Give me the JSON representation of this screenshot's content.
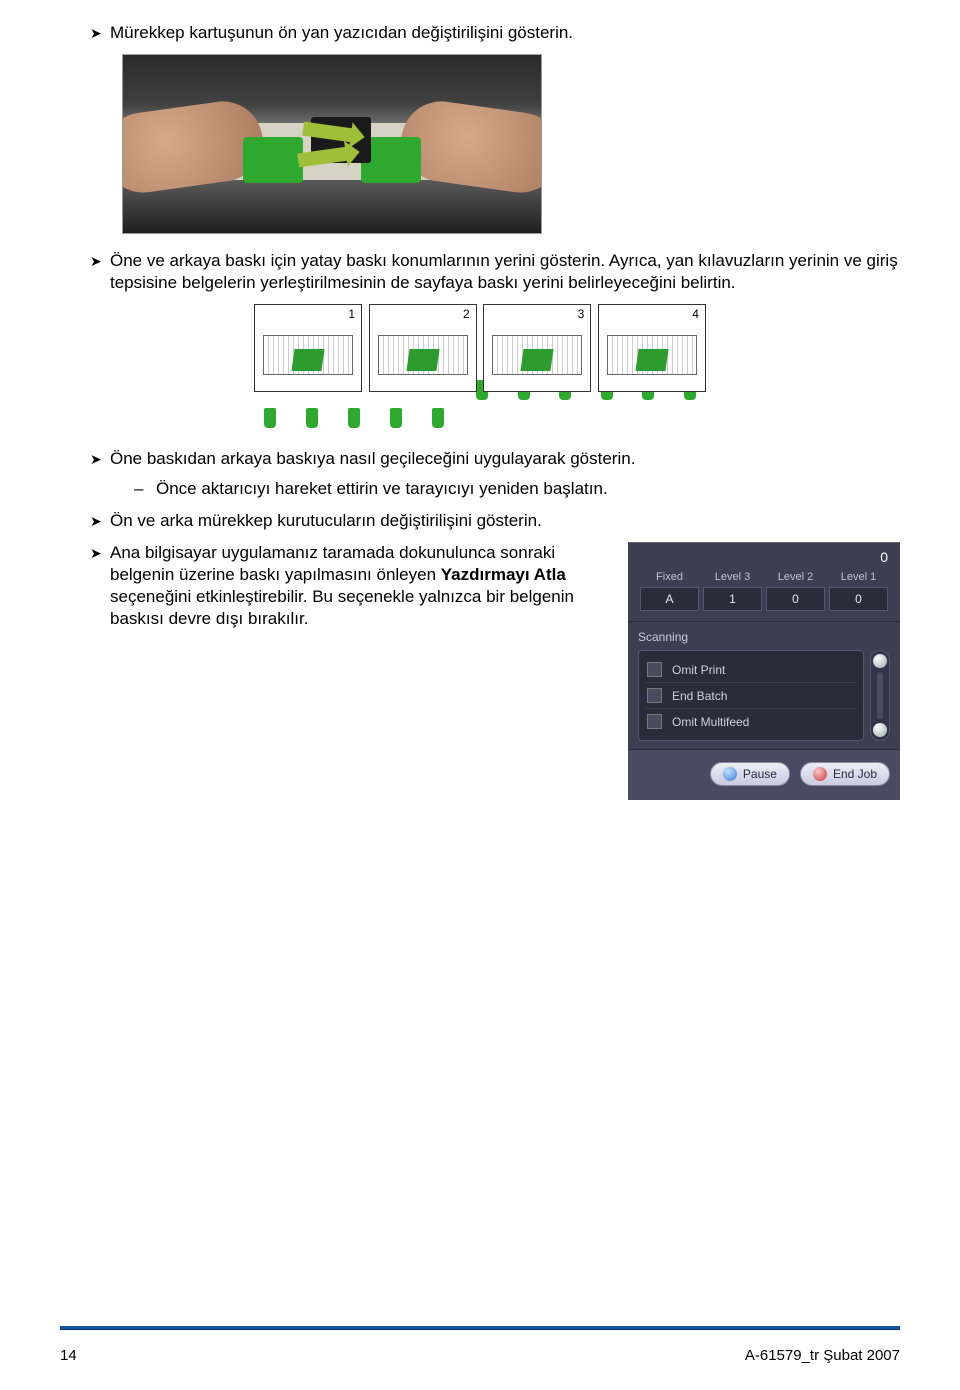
{
  "bullets": {
    "b1": "Mürekkep kartuşunun ön yan yazıcıdan değiştirilişini gösterin.",
    "b2": "Öne ve arkaya baskı için yatay baskı konumlarının yerini gösterin. Ayrıca, yan kılavuzların yerinin ve giriş tepsisine belgelerin yerleştirilmesinin de sayfaya baskı yerini belirleyeceğini belirtin.",
    "b3": "Öne baskıdan arkaya baskıya nasıl geçileceğini uygulayarak gösterin.",
    "b3_sub": "Önce aktarıcıyı hareket ettirin ve tarayıcıyı yeniden başlatın.",
    "b4": "Ön ve arka mürekkep kurutucuların değiştirilişini gösterin.",
    "b5_part1": "Ana bilgisayar uygulamanız taramada dokunulunca sonraki belgenin üzerine baskı yapılmasını önleyen ",
    "b5_bold": "Yazdırmayı Atla",
    "b5_part2": " seçeneğini etkinleştirebilir. Bu seçenekle yalnızca bir belgenin baskısı devre dışı bırakılır."
  },
  "diagram": {
    "labels": [
      "1",
      "2",
      "3",
      "4"
    ],
    "marker_color": "#2fa82f",
    "accent_color": "#2e9b2e"
  },
  "ui": {
    "counter": "0",
    "headers": [
      "Fixed",
      "Level 3",
      "Level 2",
      "Level 1"
    ],
    "values": [
      "A",
      "1",
      "0",
      "0"
    ],
    "scanning_label": "Scanning",
    "items": [
      "Omit Print",
      "End Batch",
      "Omit Multifeed"
    ],
    "pause_label": "Pause",
    "end_label": "End Job",
    "bg": "#3e3e52",
    "cell_bg": "#2b2b3c"
  },
  "footer": {
    "page": "14",
    "doc": "A-61579_tr   Şubat 2007"
  }
}
